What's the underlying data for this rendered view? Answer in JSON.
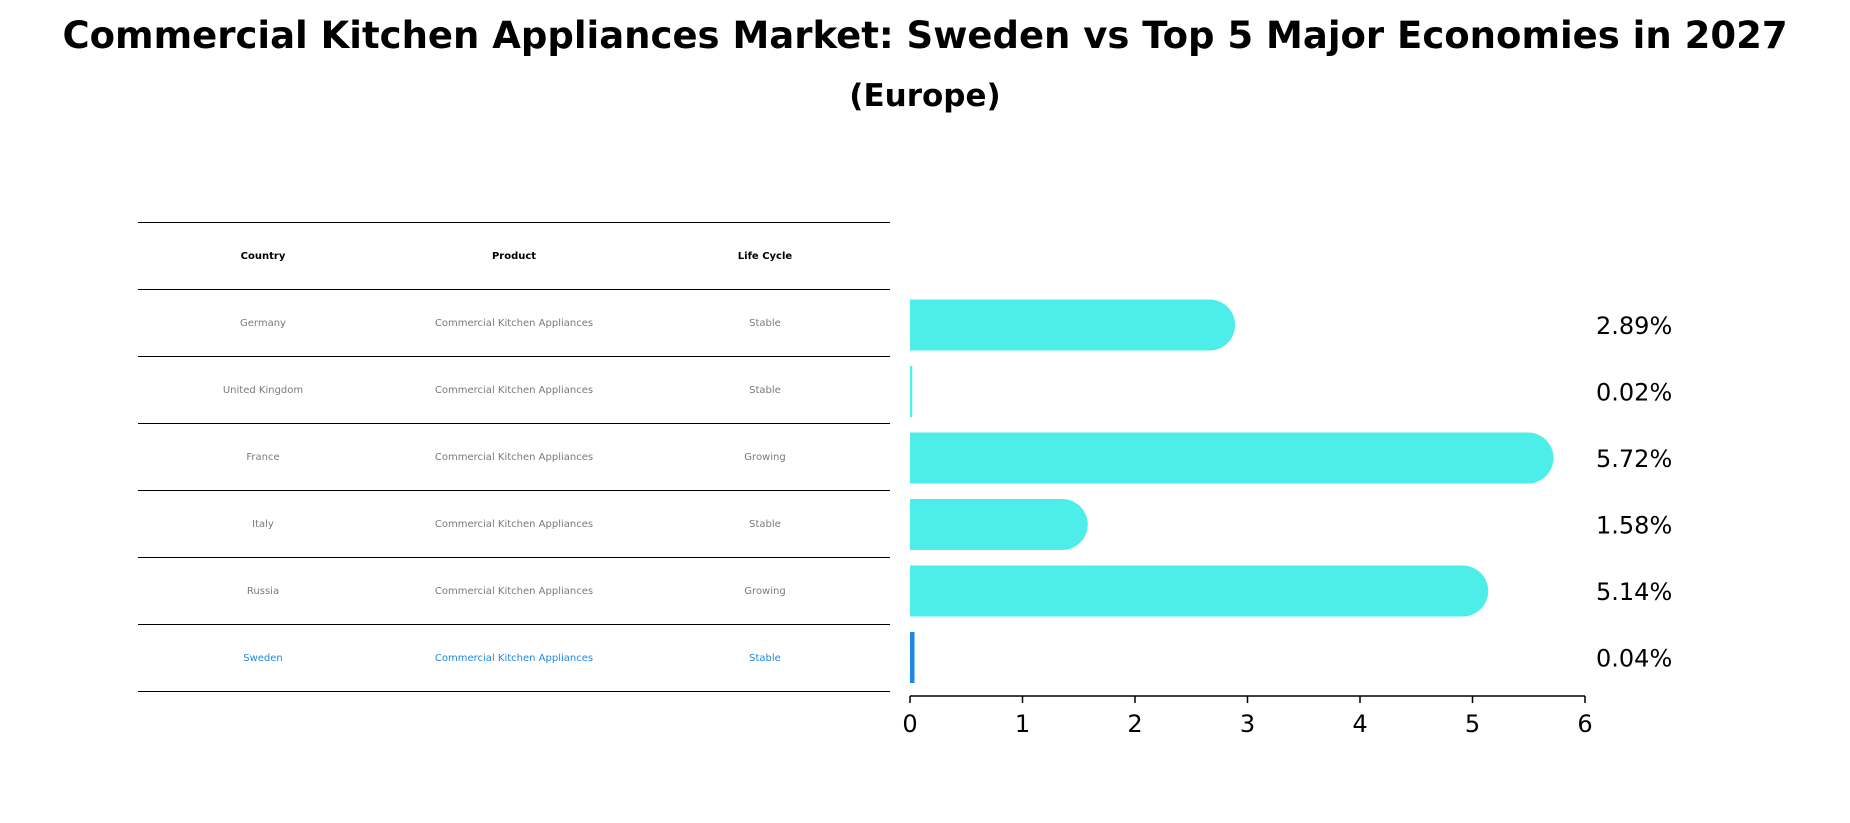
{
  "title": "Commercial Kitchen Appliances Market: Sweden vs Top 5 Major Economies in 2027",
  "subtitle": "(Europe)",
  "table": {
    "headers": [
      "Country",
      "Product",
      "Life Cycle"
    ],
    "rows": [
      {
        "country": "Germany",
        "product": "Commercial Kitchen Appliances",
        "life_cycle": "Stable"
      },
      {
        "country": "United Kingdom",
        "product": "Commercial Kitchen Appliances",
        "life_cycle": "Stable"
      },
      {
        "country": "France",
        "product": "Commercial Kitchen Appliances",
        "life_cycle": "Growing"
      },
      {
        "country": "Italy",
        "product": "Commercial Kitchen Appliances",
        "life_cycle": "Stable"
      },
      {
        "country": "Russia",
        "product": "Commercial Kitchen Appliances",
        "life_cycle": "Growing"
      },
      {
        "country": "Sweden",
        "product": "Commercial Kitchen Appliances",
        "life_cycle": "Stable"
      }
    ]
  },
  "chart_data": {
    "type": "bar",
    "orientation": "horizontal",
    "categories": [
      "Germany",
      "United Kingdom",
      "France",
      "Italy",
      "Russia",
      "Sweden"
    ],
    "values": [
      2.89,
      0.02,
      5.72,
      1.58,
      5.14,
      0.04
    ],
    "value_labels": [
      "2.89%",
      "0.02%",
      "5.72%",
      "1.58%",
      "5.14%",
      "0.04%"
    ],
    "xlim": [
      0,
      6
    ],
    "xticks": [
      0,
      1,
      2,
      3,
      4,
      5,
      6
    ],
    "xlabel": "",
    "ylabel": "",
    "colors": {
      "bar": "#4deeea",
      "highlight": "#1e88e5"
    },
    "highlight": "Sweden"
  }
}
